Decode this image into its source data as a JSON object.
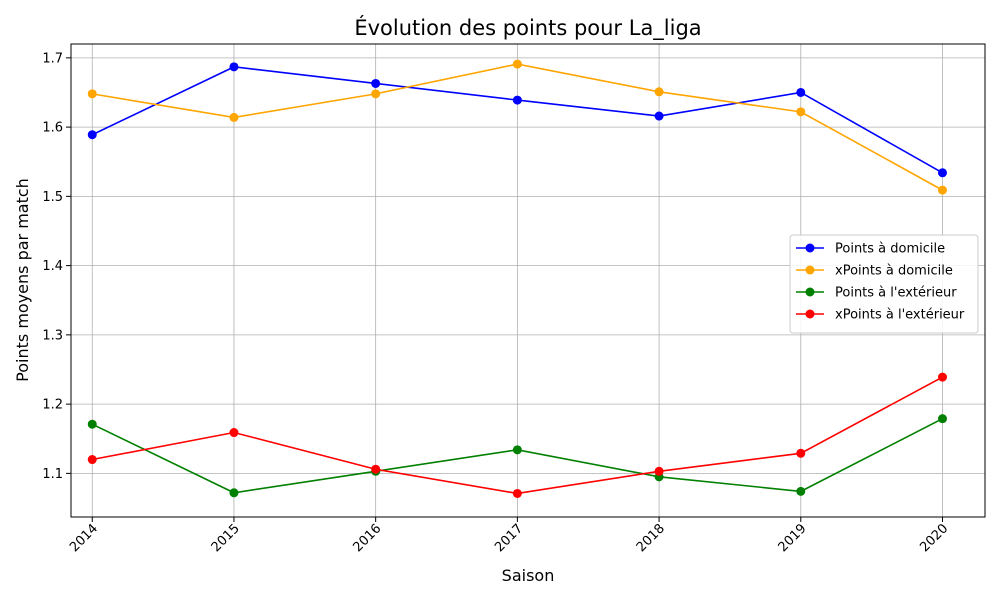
{
  "chart_data": {
    "type": "line",
    "title": "Évolution des points pour La_liga",
    "xlabel": "Saison",
    "ylabel": "Points moyens par match",
    "x": [
      2014,
      2015,
      2016,
      2017,
      2018,
      2019,
      2020
    ],
    "x_tick_labels": [
      "2014",
      "2015",
      "2016",
      "2017",
      "2018",
      "2019",
      "2020"
    ],
    "xlim": [
      2013.85,
      2020.3
    ],
    "ylim": [
      1.037,
      1.72
    ],
    "y_ticks": [
      1.1,
      1.2,
      1.3,
      1.4,
      1.5,
      1.6,
      1.7
    ],
    "y_tick_labels": [
      "1.1",
      "1.2",
      "1.3",
      "1.4",
      "1.5",
      "1.6",
      "1.7"
    ],
    "grid": true,
    "legend_position": "center-right",
    "series": [
      {
        "name": "Points à domicile",
        "color": "#0000ff",
        "values": [
          1.589,
          1.687,
          1.663,
          1.639,
          1.616,
          1.65,
          1.534
        ]
      },
      {
        "name": "xPoints à domicile",
        "color": "#ffa500",
        "values": [
          1.648,
          1.614,
          1.648,
          1.691,
          1.651,
          1.622,
          1.509
        ]
      },
      {
        "name": "Points à l'extérieur",
        "color": "#008000",
        "values": [
          1.171,
          1.072,
          1.103,
          1.134,
          1.095,
          1.074,
          1.179
        ]
      },
      {
        "name": "xPoints à l'extérieur",
        "color": "#ff0000",
        "values": [
          1.12,
          1.159,
          1.106,
          1.071,
          1.103,
          1.129,
          1.239
        ]
      }
    ]
  }
}
